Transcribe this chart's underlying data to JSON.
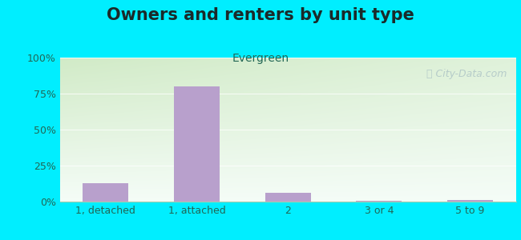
{
  "title": "Owners and renters by unit type",
  "subtitle": "Evergreen",
  "categories": [
    "1, detached",
    "1, attached",
    "2",
    "3 or 4",
    "5 to 9"
  ],
  "values": [
    13,
    80,
    6,
    0.8,
    1.2
  ],
  "bar_color": "#b8a0cc",
  "yticks": [
    0,
    25,
    50,
    75,
    100
  ],
  "ytick_labels": [
    "0%",
    "25%",
    "50%",
    "75%",
    "100%"
  ],
  "ylim": [
    0,
    100
  ],
  "background_outer": "#00eeff",
  "background_plot_topleft": "#d4e8c8",
  "background_plot_topright": "#e8f4e0",
  "background_plot_bottom": "#f8fffe",
  "title_fontsize": 15,
  "subtitle_fontsize": 10,
  "tick_fontsize": 9,
  "watermark": "Ⓢ City-Data.com"
}
